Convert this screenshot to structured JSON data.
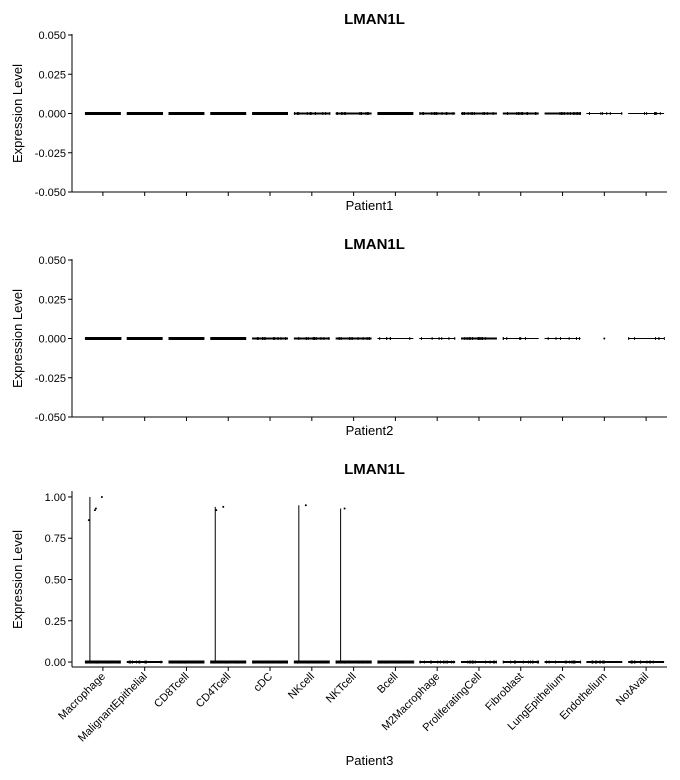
{
  "chart_data": [
    {
      "type": "violin",
      "title": "LMAN1L",
      "xlabel": "Patient1",
      "ylabel": "Expression Level",
      "ylim": [
        -0.05,
        0.05
      ],
      "y_ticks": [
        "0.050",
        "0.025",
        "0.000",
        "-0.025",
        "-0.050"
      ],
      "y_tick_values": [
        0.05,
        0.025,
        0,
        -0.025,
        -0.05
      ],
      "show_x_tick_labels": false,
      "categories": [
        "Macrophage",
        "MalignantEpithelial",
        "CD8Tcell",
        "CD4Tcell",
        "cDC",
        "NKcell",
        "NKTcell",
        "Bcell",
        "M2Macrophage",
        "ProliferatingCell",
        "Fibroblast",
        "LungEpithelium",
        "Endothelium",
        "NotAvail"
      ],
      "point_density": [
        3,
        3,
        3,
        3,
        3,
        2,
        2,
        3,
        2,
        2,
        2,
        2,
        1,
        1
      ],
      "values": [
        0,
        0,
        0,
        0,
        0,
        0,
        0,
        0,
        0,
        0,
        0,
        0,
        0,
        0
      ],
      "outliers": []
    },
    {
      "type": "violin",
      "title": "LMAN1L",
      "xlabel": "Patient2",
      "ylabel": "Expression Level",
      "ylim": [
        -0.05,
        0.05
      ],
      "y_ticks": [
        "0.050",
        "0.025",
        "0.000",
        "-0.025",
        "-0.050"
      ],
      "y_tick_values": [
        0.05,
        0.025,
        0,
        -0.025,
        -0.05
      ],
      "show_x_tick_labels": false,
      "categories": [
        "Macrophage",
        "MalignantEpithelial",
        "CD8Tcell",
        "CD4Tcell",
        "cDC",
        "NKcell",
        "NKTcell",
        "Bcell",
        "M2Macrophage",
        "ProliferatingCell",
        "Fibroblast",
        "LungEpithelium",
        "Endothelium",
        "NotAvail"
      ],
      "point_density": [
        3,
        3,
        3,
        3,
        2,
        2,
        2,
        1,
        1,
        2,
        1,
        1,
        0,
        1
      ],
      "values": [
        0,
        0,
        0,
        0,
        0,
        0,
        0,
        0,
        0,
        0,
        0,
        0,
        0,
        0
      ],
      "outliers": [
        {
          "category": "Endothelium",
          "y": 0
        }
      ]
    },
    {
      "type": "violin",
      "title": "LMAN1L",
      "xlabel": "Patient3",
      "ylabel": "Expression Level",
      "ylim": [
        -0.03,
        1.03
      ],
      "y_ticks": [
        "1.00",
        "0.75",
        "0.50",
        "0.25",
        "0.00"
      ],
      "y_tick_values": [
        1,
        0.75,
        0.5,
        0.25,
        0
      ],
      "show_x_tick_labels": true,
      "categories": [
        "Macrophage",
        "MalignantEpithelial",
        "CD8Tcell",
        "CD4Tcell",
        "cDC",
        "NKcell",
        "NKTcell",
        "Bcell",
        "M2Macrophage",
        "ProliferatingCell",
        "Fibroblast",
        "LungEpithelium",
        "Endothelium",
        "NotAvail"
      ],
      "point_density": [
        3,
        2,
        3,
        3,
        3,
        3,
        3,
        3,
        2,
        2,
        2,
        2,
        2,
        2
      ],
      "values": [
        0,
        0,
        0,
        0,
        0,
        0,
        0,
        0,
        0,
        0,
        0,
        0,
        0,
        0
      ],
      "violin_max": [
        1.0,
        0,
        0,
        0.94,
        0,
        0.95,
        0.93,
        0,
        0,
        0,
        0,
        0,
        0,
        0
      ],
      "outliers": [
        {
          "category": "Macrophage",
          "y": 0.86
        },
        {
          "category": "Macrophage",
          "y": 0.93
        },
        {
          "category": "Macrophage",
          "y": 0.92
        },
        {
          "category": "Macrophage",
          "y": 1.0
        },
        {
          "category": "CD4Tcell",
          "y": 0.92
        },
        {
          "category": "CD4Tcell",
          "y": 0.94
        },
        {
          "category": "NKcell",
          "y": 0.95
        },
        {
          "category": "NKTcell",
          "y": 0.93
        }
      ]
    }
  ]
}
